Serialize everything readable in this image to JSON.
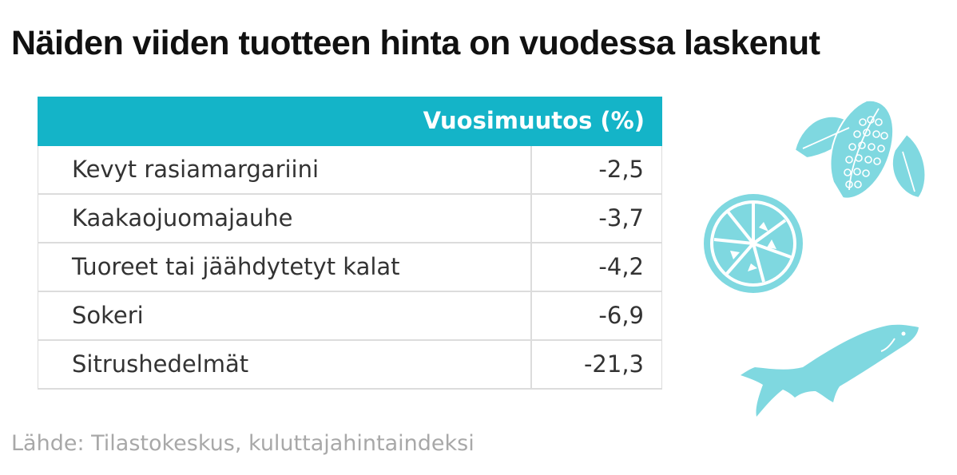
{
  "title": "Näiden viiden tuotteen hinta on vuodessa laskenut",
  "source": "Lähde: Tilastokeskus, kuluttajahintaindeksi",
  "colors": {
    "accent": "#14b4c8",
    "illustration": "#7fd8e0"
  },
  "icons": [
    "cocoa-pod-icon",
    "citrus-slice-icon",
    "fish-icon"
  ],
  "chart_data": {
    "type": "table",
    "title": "Näiden viiden tuotteen hinta on vuodessa laskenut",
    "column_header": "Vuosimuutos (%)",
    "rows": [
      {
        "label": "Kevyt rasiamargariini",
        "value": "-2,5"
      },
      {
        "label": "Kaakaojuomajauhe",
        "value": "-3,7"
      },
      {
        "label": "Tuoreet tai jäähdytetyt kalat",
        "value": "-4,2"
      },
      {
        "label": "Sokeri",
        "value": "-6,9"
      },
      {
        "label": "Sitrushedelmät",
        "value": "-21,3"
      }
    ]
  }
}
